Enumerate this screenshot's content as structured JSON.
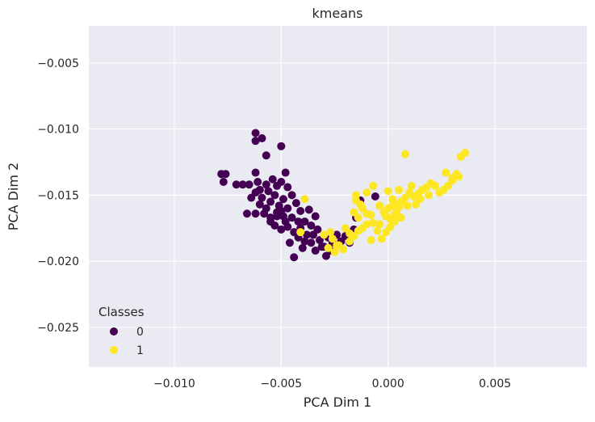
{
  "chart_data": {
    "type": "scatter",
    "title": "kmeans",
    "xlabel": "PCA Dim 1",
    "ylabel": "PCA Dim 2",
    "xlim": [
      -0.014,
      0.0093
    ],
    "ylim": [
      -0.028,
      -0.0022
    ],
    "xticks": [
      -0.01,
      -0.005,
      0.0,
      0.005
    ],
    "xtick_labels": [
      "−0.010",
      "−0.005",
      "0.000",
      "0.005"
    ],
    "yticks": [
      -0.005,
      -0.01,
      -0.015,
      -0.02,
      -0.025
    ],
    "ytick_labels": [
      "−0.005",
      "−0.010",
      "−0.015",
      "−0.020",
      "−0.025"
    ],
    "grid": true,
    "legend": {
      "title": "Classes",
      "placement": "lower-left"
    },
    "series": [
      {
        "name": "0",
        "color": "#440154",
        "points": [
          [
            -0.0062,
            -0.0103
          ],
          [
            -0.0062,
            -0.0109
          ],
          [
            -0.0059,
            -0.0107
          ],
          [
            -0.005,
            -0.0113
          ],
          [
            -0.0057,
            -0.012
          ],
          [
            -0.0078,
            -0.0134
          ],
          [
            -0.0076,
            -0.0134
          ],
          [
            -0.0077,
            -0.014
          ],
          [
            -0.0071,
            -0.0142
          ],
          [
            -0.0068,
            -0.0142
          ],
          [
            -0.0065,
            -0.0142
          ],
          [
            -0.0062,
            -0.0133
          ],
          [
            -0.0061,
            -0.014
          ],
          [
            -0.0062,
            -0.0148
          ],
          [
            -0.0059,
            -0.0152
          ],
          [
            -0.0056,
            -0.0147
          ],
          [
            -0.0054,
            -0.0138
          ],
          [
            -0.0052,
            -0.0143
          ],
          [
            -0.005,
            -0.014
          ],
          [
            -0.0048,
            -0.0133
          ],
          [
            -0.0047,
            -0.0144
          ],
          [
            -0.006,
            -0.0157
          ],
          [
            -0.0057,
            -0.016
          ],
          [
            -0.0055,
            -0.0155
          ],
          [
            -0.0053,
            -0.015
          ],
          [
            -0.0051,
            -0.0158
          ],
          [
            -0.0049,
            -0.0153
          ],
          [
            -0.0047,
            -0.016
          ],
          [
            -0.0062,
            -0.0164
          ],
          [
            -0.0058,
            -0.0164
          ],
          [
            -0.0055,
            -0.0167
          ],
          [
            -0.0052,
            -0.0166
          ],
          [
            -0.005,
            -0.0162
          ],
          [
            -0.0048,
            -0.017
          ],
          [
            -0.0045,
            -0.0167
          ],
          [
            -0.0043,
            -0.0156
          ],
          [
            -0.0041,
            -0.0162
          ],
          [
            -0.0039,
            -0.017
          ],
          [
            -0.0053,
            -0.0173
          ],
          [
            -0.005,
            -0.0176
          ],
          [
            -0.0047,
            -0.0174
          ],
          [
            -0.0044,
            -0.0178
          ],
          [
            -0.0041,
            -0.0175
          ],
          [
            -0.0038,
            -0.018
          ],
          [
            -0.0036,
            -0.0173
          ],
          [
            -0.0034,
            -0.0166
          ],
          [
            -0.0046,
            -0.0186
          ],
          [
            -0.0042,
            -0.0182
          ],
          [
            -0.0039,
            -0.0185
          ],
          [
            -0.0035,
            -0.018
          ],
          [
            -0.0032,
            -0.0184
          ],
          [
            -0.003,
            -0.0189
          ],
          [
            -0.0028,
            -0.0182
          ],
          [
            -0.0026,
            -0.0186
          ],
          [
            -0.0024,
            -0.018
          ],
          [
            -0.0022,
            -0.0185
          ],
          [
            -0.002,
            -0.0181
          ],
          [
            -0.0018,
            -0.0186
          ],
          [
            -0.0029,
            -0.0196
          ],
          [
            -0.0027,
            -0.0192
          ],
          [
            -0.0031,
            -0.0189
          ],
          [
            -0.0016,
            -0.0176
          ],
          [
            -0.0015,
            -0.0167
          ],
          [
            -0.0013,
            -0.0154
          ],
          [
            -0.0006,
            -0.0151
          ],
          [
            -0.0044,
            -0.0197
          ],
          [
            -0.0034,
            -0.0192
          ],
          [
            -0.0066,
            -0.0164
          ],
          [
            -0.0064,
            -0.0152
          ],
          [
            -0.006,
            -0.0146
          ],
          [
            -0.0057,
            -0.0142
          ],
          [
            -0.0055,
            -0.017
          ],
          [
            -0.0045,
            -0.015
          ],
          [
            -0.0042,
            -0.017
          ],
          [
            -0.0037,
            -0.0161
          ],
          [
            -0.0033,
            -0.0176
          ],
          [
            -0.004,
            -0.019
          ],
          [
            -0.0036,
            -0.0186
          ],
          [
            -0.0052,
            -0.0163
          ],
          [
            -0.0049,
            -0.0166
          ]
        ]
      },
      {
        "name": "1",
        "color": "#fde725",
        "points": [
          [
            -0.0039,
            -0.0153
          ],
          [
            -0.0041,
            -0.0178
          ],
          [
            -0.0027,
            -0.0178
          ],
          [
            -0.0026,
            -0.0183
          ],
          [
            -0.0028,
            -0.019
          ],
          [
            -0.0025,
            -0.0193
          ],
          [
            -0.0023,
            -0.0188
          ],
          [
            -0.0021,
            -0.0191
          ],
          [
            -0.0018,
            -0.0185
          ],
          [
            -0.0016,
            -0.0181
          ],
          [
            -0.0014,
            -0.0177
          ],
          [
            -0.0012,
            -0.0175
          ],
          [
            -0.001,
            -0.0172
          ],
          [
            -0.0014,
            -0.0167
          ],
          [
            -0.0016,
            -0.0163
          ],
          [
            -0.0012,
            -0.016
          ],
          [
            -0.001,
            -0.0164
          ],
          [
            -0.0008,
            -0.0165
          ],
          [
            -0.0007,
            -0.0171
          ],
          [
            -0.0005,
            -0.0177
          ],
          [
            -0.0003,
            -0.0183
          ],
          [
            -0.0001,
            -0.0178
          ],
          [
            0.0001,
            -0.0174
          ],
          [
            0.0003,
            -0.017
          ],
          [
            -0.0015,
            -0.0154
          ],
          [
            -0.0015,
            -0.015
          ],
          [
            -0.0013,
            -0.0157
          ],
          [
            -0.0007,
            -0.0143
          ],
          [
            -0.0004,
            -0.0158
          ],
          [
            -0.0002,
            -0.0163
          ],
          [
            0.0,
            -0.016
          ],
          [
            0.0002,
            -0.0158
          ],
          [
            0.0004,
            -0.0162
          ],
          [
            0.0,
            -0.0147
          ],
          [
            0.0002,
            -0.0153
          ],
          [
            0.0004,
            -0.0157
          ],
          [
            0.0006,
            -0.0155
          ],
          [
            0.0008,
            -0.0152
          ],
          [
            0.001,
            -0.0148
          ],
          [
            0.0012,
            -0.0151
          ],
          [
            0.0014,
            -0.0149
          ],
          [
            0.0016,
            -0.0146
          ],
          [
            0.0018,
            -0.0144
          ],
          [
            0.002,
            -0.0141
          ],
          [
            0.0022,
            -0.0143
          ],
          [
            0.0024,
            -0.0148
          ],
          [
            0.0026,
            -0.0146
          ],
          [
            0.0028,
            -0.0143
          ],
          [
            0.003,
            -0.0139
          ],
          [
            0.0032,
            -0.0134
          ],
          [
            0.0034,
            -0.0121
          ],
          [
            0.0036,
            -0.0118
          ],
          [
            0.0027,
            -0.0133
          ],
          [
            0.003,
            -0.0137
          ],
          [
            0.0033,
            -0.0136
          ],
          [
            0.0008,
            -0.0119
          ],
          [
            0.0011,
            -0.0143
          ],
          [
            0.0013,
            -0.0157
          ],
          [
            0.0005,
            -0.0146
          ],
          [
            -0.001,
            -0.0148
          ],
          [
            -0.002,
            -0.0175
          ],
          [
            -0.0024,
            -0.0188
          ],
          [
            -0.0018,
            -0.0179
          ],
          [
            -0.003,
            -0.018
          ],
          [
            -0.0008,
            -0.0184
          ],
          [
            -0.0004,
            -0.0172
          ],
          [
            0.0006,
            -0.0167
          ],
          [
            0.0001,
            -0.0168
          ],
          [
            0.0009,
            -0.0158
          ],
          [
            0.0015,
            -0.0153
          ],
          [
            0.0019,
            -0.015
          ],
          [
            -0.0001,
            -0.0166
          ],
          [
            0.0003,
            -0.0165
          ],
          [
            0.0005,
            -0.0159
          ]
        ]
      }
    ]
  }
}
